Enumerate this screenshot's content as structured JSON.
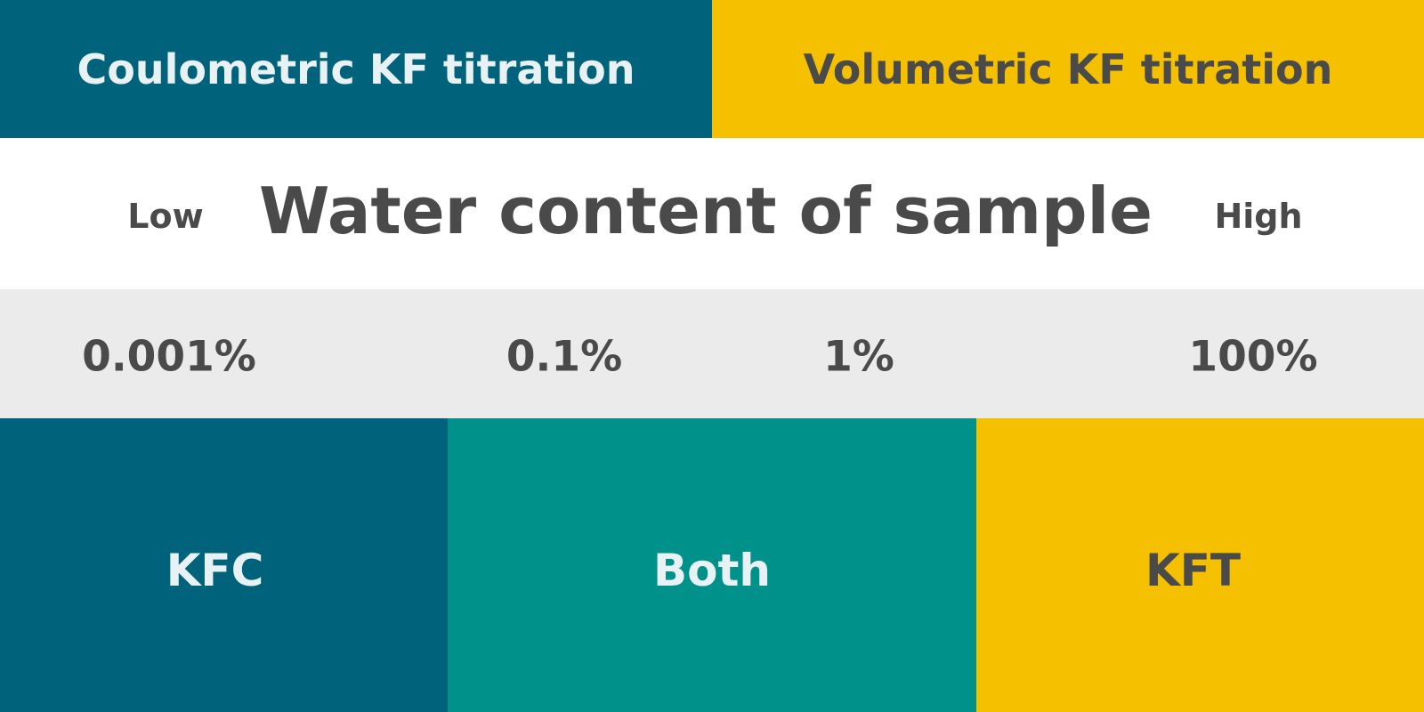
{
  "header": {
    "left_label": "Coulometric KF titration",
    "right_label": "Volumetric KF titration"
  },
  "title_band": {
    "low_label": "Low",
    "title": "Water content of sample",
    "high_label": "High"
  },
  "scale": {
    "ticks": [
      "0.001%",
      "0.1%",
      "1%",
      "100%"
    ]
  },
  "ranges": {
    "coulometric": "KFC",
    "both": "Both",
    "volumetric": "KFT"
  },
  "colors": {
    "coulometric_teal_dark": "#00637b",
    "both_teal": "#00918b",
    "volumetric_yellow": "#f4c000",
    "scale_gray": "#ebebeb",
    "text_dark": "#4a4a4a",
    "text_light": "#e8f1f3"
  }
}
